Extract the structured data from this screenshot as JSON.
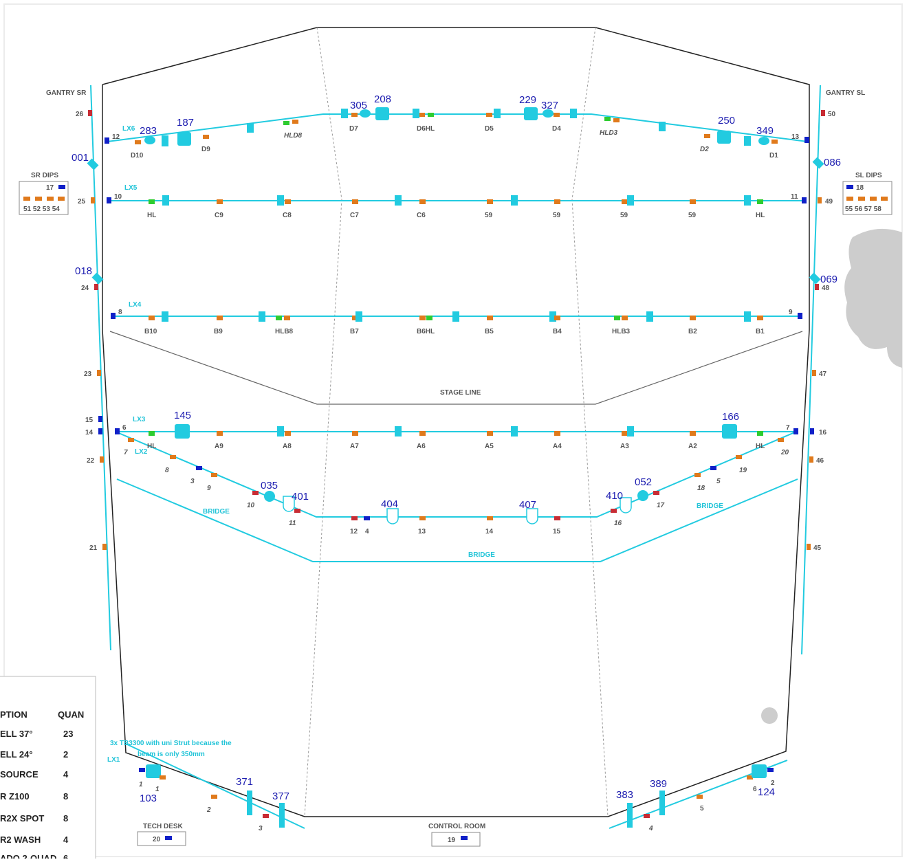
{
  "colors": {
    "pipe": "#22cbe0",
    "hung": "#e07a1c",
    "blue": "#1020c8",
    "red": "#c82c34",
    "green": "#2ecc30",
    "fixture": "#22cbe0",
    "wall": "#222222"
  },
  "gantry": {
    "sr_label": "GANTRY SR",
    "sl_label": "GANTRY SL"
  },
  "sr_dips": {
    "title": "SR DIPS",
    "top": "17",
    "bottom": "51 52 53 54"
  },
  "sl_dips": {
    "title": "SL DIPS",
    "top": "18",
    "bottom": "55 56 57 58"
  },
  "pipes": {
    "lx6": "LX6",
    "lx5": "LX5",
    "lx4": "LX4",
    "lx3": "LX3",
    "lx2": "LX2",
    "lx1": "LX1",
    "bridge": "BRIDGE",
    "stage_line": "STAGE LINE"
  },
  "lx6": {
    "nums": [
      "283",
      "187",
      "305",
      "208",
      "229",
      "327",
      "250",
      "349"
    ],
    "labels": [
      "D10",
      "D9",
      "HLD8",
      "D7",
      "D6HL",
      "D5",
      "D4",
      "HLD3",
      "D2",
      "D1"
    ],
    "ends": [
      "12",
      "13"
    ]
  },
  "lx5": {
    "labels": [
      "HL",
      "C9",
      "C8",
      "C7",
      "C6",
      "59",
      "59",
      "59",
      "59",
      "HL"
    ],
    "ends": [
      "10",
      "11"
    ]
  },
  "lx4": {
    "labels": [
      "B10",
      "B9",
      "HLB8",
      "B7",
      "B6HL",
      "B5",
      "B4",
      "HLB3",
      "B2",
      "B1"
    ],
    "ends": [
      "8",
      "9"
    ]
  },
  "lx3": {
    "nums": [
      "145",
      "166"
    ],
    "labels": [
      "HL",
      "A9",
      "A8",
      "A7",
      "A6",
      "A5",
      "A4",
      "A3",
      "A2",
      "HL"
    ],
    "ends": [
      "6",
      "7"
    ]
  },
  "lx2": {
    "nums": [
      "035",
      "401",
      "404",
      "407",
      "410",
      "052"
    ],
    "labels": [
      "7",
      "8",
      "3",
      "9",
      "10",
      "11",
      "12",
      "4",
      "13",
      "14",
      "15",
      "16",
      "17",
      "18",
      "5",
      "19",
      "20"
    ]
  },
  "gantry_sr_nums": [
    "001",
    "018"
  ],
  "gantry_sl_nums": [
    "086",
    "069"
  ],
  "sr_circuits": [
    "26",
    "25",
    "24",
    "23",
    "15",
    "14",
    "22",
    "21"
  ],
  "sl_circuits": [
    "50",
    "49",
    "48",
    "47",
    "16",
    "46",
    "45"
  ],
  "lx1": {
    "note_line1": "3x TB3300 with uni Strut because the",
    "note_line2": "beam is only 350mm",
    "nums": [
      "103",
      "371",
      "377",
      "383",
      "389",
      "124"
    ],
    "labels": [
      "1",
      "1",
      "2",
      "3",
      "4",
      "5",
      "6",
      "2"
    ]
  },
  "tech_desk": {
    "title": "TECH DESK",
    "value": "20"
  },
  "control_room": {
    "title": "CONTROL ROOM",
    "value": "19"
  },
  "legend": {
    "col1": "PTION",
    "col2": "QUAN",
    "rows": [
      {
        "name": "ELL 37°",
        "qty": "23"
      },
      {
        "name": "ELL 24°",
        "qty": "2"
      },
      {
        "name": "SOURCE",
        "qty": "4"
      },
      {
        "name": "R Z100",
        "qty": "8"
      },
      {
        "name": "R2X SPOT",
        "qty": "8"
      },
      {
        "name": "R2 WASH",
        "qty": "4"
      },
      {
        "name": "ADO 2-QUAD",
        "qty": "6"
      }
    ]
  }
}
